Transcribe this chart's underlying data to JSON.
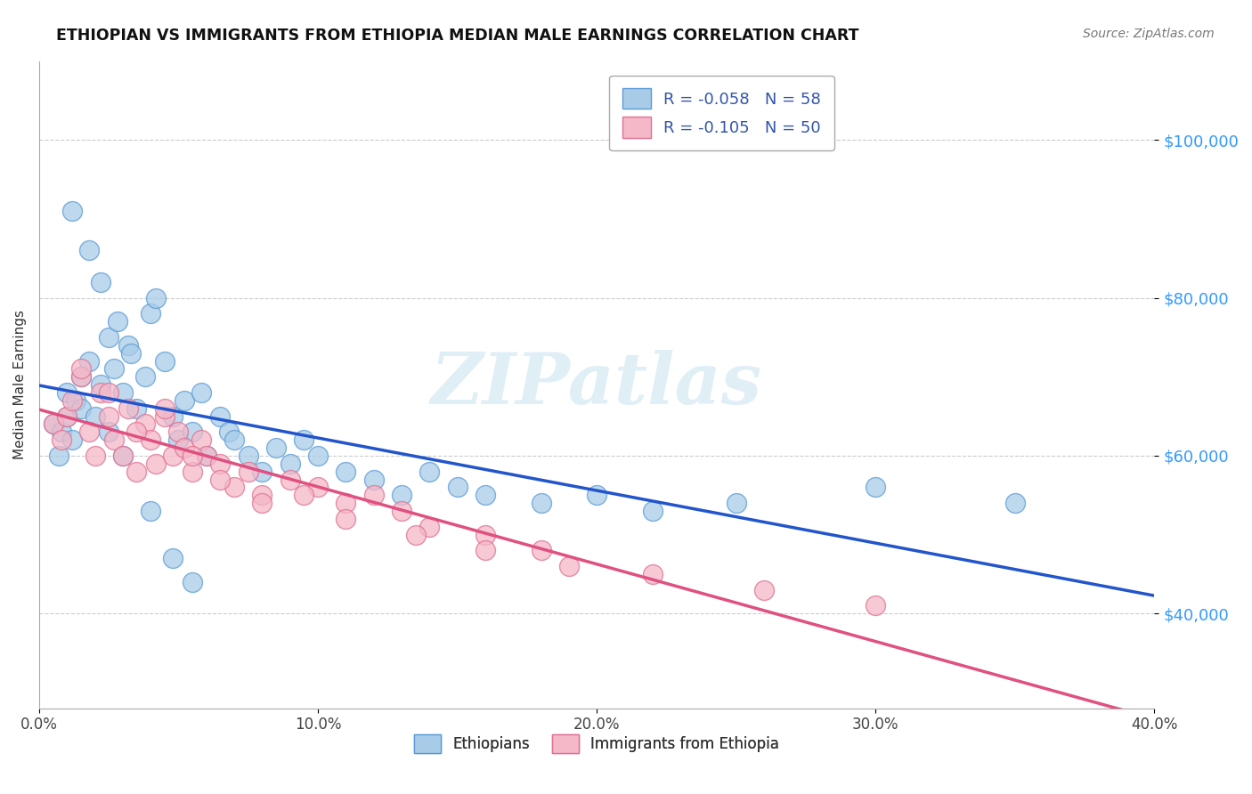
{
  "title": "ETHIOPIAN VS IMMIGRANTS FROM ETHIOPIA MEDIAN MALE EARNINGS CORRELATION CHART",
  "source": "Source: ZipAtlas.com",
  "ylabel": "Median Male Earnings",
  "yticks": [
    40000,
    60000,
    80000,
    100000
  ],
  "ytick_labels": [
    "$40,000",
    "$60,000",
    "$80,000",
    "$100,000"
  ],
  "xlim": [
    0.0,
    0.4
  ],
  "ylim": [
    28000,
    110000
  ],
  "xticks": [
    0.0,
    0.1,
    0.2,
    0.3,
    0.4
  ],
  "xticklabels": [
    "0.0%",
    "10.0%",
    "20.0%",
    "30.0%",
    "40.0%"
  ],
  "watermark": "ZIPatlas",
  "blue_scatter_color": "#a8cce8",
  "blue_edge_color": "#5b9bd5",
  "pink_scatter_color": "#f4b8c8",
  "pink_edge_color": "#e07090",
  "trend_blue": "#2255cc",
  "trend_pink": "#e05080",
  "legend_r1": "R = -0.058",
  "legend_n1": "N = 58",
  "legend_r2": "R = -0.105",
  "legend_n2": "N = 50",
  "blue_label": "Ethiopians",
  "pink_label": "Immigrants from Ethiopia",
  "ethiopians_x": [
    0.005,
    0.007,
    0.008,
    0.01,
    0.01,
    0.012,
    0.013,
    0.015,
    0.015,
    0.018,
    0.02,
    0.022,
    0.025,
    0.025,
    0.027,
    0.03,
    0.03,
    0.032,
    0.035,
    0.038,
    0.04,
    0.042,
    0.045,
    0.048,
    0.05,
    0.052,
    0.055,
    0.058,
    0.06,
    0.065,
    0.068,
    0.07,
    0.075,
    0.08,
    0.085,
    0.09,
    0.095,
    0.1,
    0.11,
    0.12,
    0.13,
    0.14,
    0.15,
    0.16,
    0.18,
    0.2,
    0.22,
    0.25,
    0.3,
    0.35,
    0.012,
    0.018,
    0.022,
    0.028,
    0.033,
    0.04,
    0.048,
    0.055
  ],
  "ethiopians_y": [
    64000,
    60000,
    63000,
    65000,
    68000,
    62000,
    67000,
    70000,
    66000,
    72000,
    65000,
    69000,
    75000,
    63000,
    71000,
    68000,
    60000,
    74000,
    66000,
    70000,
    78000,
    80000,
    72000,
    65000,
    62000,
    67000,
    63000,
    68000,
    60000,
    65000,
    63000,
    62000,
    60000,
    58000,
    61000,
    59000,
    62000,
    60000,
    58000,
    57000,
    55000,
    58000,
    56000,
    55000,
    54000,
    55000,
    53000,
    54000,
    56000,
    54000,
    91000,
    86000,
    82000,
    77000,
    73000,
    53000,
    47000,
    44000
  ],
  "immigrants_x": [
    0.005,
    0.008,
    0.01,
    0.012,
    0.015,
    0.018,
    0.02,
    0.022,
    0.025,
    0.027,
    0.03,
    0.032,
    0.035,
    0.038,
    0.04,
    0.042,
    0.045,
    0.048,
    0.05,
    0.052,
    0.055,
    0.058,
    0.06,
    0.065,
    0.07,
    0.075,
    0.08,
    0.09,
    0.1,
    0.11,
    0.12,
    0.13,
    0.14,
    0.16,
    0.18,
    0.015,
    0.025,
    0.035,
    0.045,
    0.055,
    0.065,
    0.08,
    0.095,
    0.11,
    0.135,
    0.16,
    0.19,
    0.22,
    0.26,
    0.3
  ],
  "immigrants_y": [
    64000,
    62000,
    65000,
    67000,
    70000,
    63000,
    60000,
    68000,
    65000,
    62000,
    60000,
    66000,
    58000,
    64000,
    62000,
    59000,
    65000,
    60000,
    63000,
    61000,
    58000,
    62000,
    60000,
    59000,
    56000,
    58000,
    55000,
    57000,
    56000,
    54000,
    55000,
    53000,
    51000,
    50000,
    48000,
    71000,
    68000,
    63000,
    66000,
    60000,
    57000,
    54000,
    55000,
    52000,
    50000,
    48000,
    46000,
    45000,
    43000,
    41000
  ]
}
